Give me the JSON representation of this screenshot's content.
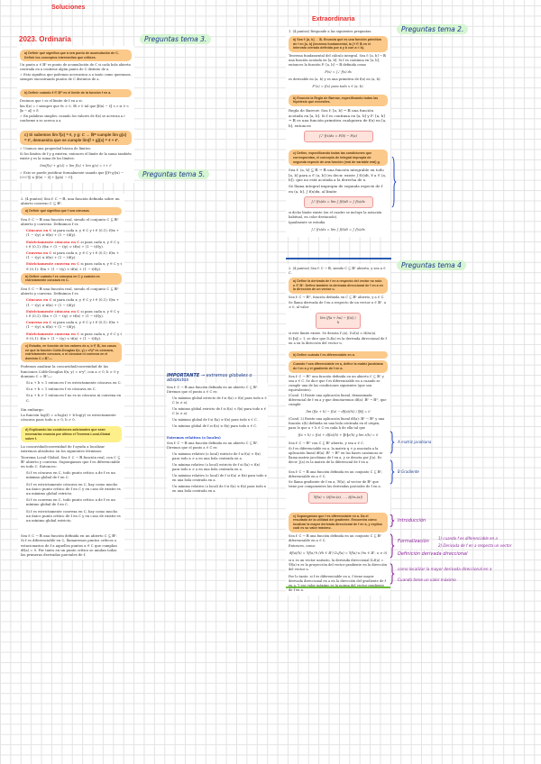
{
  "titles": {
    "soluciones": "Soluciones",
    "ordinaria": "2023. Ordinaria",
    "extraordinaria": "Extraordinaria"
  },
  "tags": [
    "Preguntas tema 3.",
    "Preguntas tema 2.",
    "Preguntas tema 5.",
    "Preguntas tema 4"
  ],
  "colors": {
    "title": "#e8302f",
    "question": "#fbc98a",
    "highlight": "#fcf282",
    "tag": "#d6f5d2",
    "annotation": "#8a1f9a",
    "divider_blue": "#2a5cb0",
    "divider_green": "#6cbf3a"
  },
  "ord": {
    "qa": "a) Definir qué significa que a sea punto de acumulación de C. Definir los conceptos intermedios que utilices.",
    "qa_body": [
      "Un punto a ∈ ℝⁿ es punto de acumulación de C si cada bola abierta centrada en a contiene algún punto de C distinto de a.",
      "✓ Esto significa que podemos acercarnos a a tanto como queramos, siempre encontrando puntos de C distintos de a."
    ],
    "qb": "b) Definir cuándo ℓ ∈ ℝᵐ es el límite de la función f en a.",
    "qb_body": [
      "Decimos que ℓ es el límite de f en a si:",
      "lim f(x) = ℓ   siempre que  ∀ε > 0, ∃δ > 0 tal que ‖f(x) − ℓ‖ < ε si 0 < ‖x − a‖ < δ",
      "✓ En palabras simples: cuando los valores de f(x) se acercan a ℓ conforme x se acerca a a."
    ],
    "qc": "c) Si sabemos lím f(x) = ℓ, y g: C → ℝᵐ cumple lím g(x) = ℓ', demuestra que se cumple lím(f + g)(x) = ℓ + ℓ'.",
    "qc_body": [
      "✓ Usamos una propiedad básica de límites:",
      "Si los límites de f y g existen, entonces el límite de la suma también existe y es la suma de los límites:",
      "lim(f(x) + g(x)) = lim f(x) + lim g(x) = ℓ + ℓ'",
      "✓ Esto se puede justificar formalmente usando que ‖(f+g)(x) − (ℓ+ℓ')‖ ≤ ‖f(x) − ℓ‖ + ‖g(x) − ℓ'‖."
    ]
  },
  "t5": {
    "intro": "2. (4 puntos) Sea f: C → ℝ, una función definida sobre un abierto convexo C ⊆ ℝⁿ.",
    "qa": "a) Definir qué significa que f sea cóncava.",
    "qa_body": "Sea f: C → ℝ una función real, siendo el conjunto C ⊆ ℝⁿ abierto y convexo. Definimos f es",
    "items": [
      {
        "k": "Cóncava en C",
        "v": "si para cada x, y ∈ C y t ∈ (0,1): f(tx + (1 − t)y) ≥ tf(x) + (1 − t)f(y)."
      },
      {
        "k": "Estrictamente cóncava en C",
        "v": "si para cada x, y ∈ C y t ∈ (0,1): f(tx + (1 − t)y) > tf(x) + (1 − t)f(y)."
      },
      {
        "k": "Convexa en C",
        "v": "si para cada x, y ∈ C y t ∈ (0,1): f(tx + (1 − t)y) ≤ tf(x) + (1 − t)f(y)."
      },
      {
        "k": "Estrictamente convexa en C",
        "v": "si para cada x, y ∈ C y t ∈ (0,1): f(tx + (1 − t)y) < tf(x) + (1 − t)f(y)."
      }
    ],
    "qb": "b) Definir cuándo f es cóncava en C y cuándo es estrictamente cóncava en C.",
    "qb_body": "Sea f: C → ℝ una función real, siendo el conjunto C ⊆ ℝⁿ abierto y convexo. Definimos f es",
    "qc": "c) Estudia, en función de los valores de a, b ∈ ℝ, los casos en que la función Cobb-Douglas f(x, y) = xᵃyᵇ es cóncava, estrictamente cóncava, o ni cóncava ni convexa en el dominio C = ℝ²₊₊.",
    "qc_body": "Podemos analizar la concavidad/convexidad de las funciones Cobb-Douglas f(x, y) = xᵃyᵇ, con a > 0, b > 0 y dominio C = ℝ²₊₊:",
    "cases": [
      "Si a + b < 1 entonces f es estrictamente cóncava en C.",
      "Si a + b = 1 entonces f es cóncava en C.",
      "Si a + b > 1 entonces f no es ni cóncava ni convexa en C."
    ],
    "sin_embargo": "Sin embargo:",
    "log": "La función log(f) = a·log(x) + b·log(y) es estrictamente cóncava para todo a > 0, b > 0.",
    "qd": "d) Explicando las condiciones adicionales que sean necesarias enuncia por último el Teorema Local-Global sobre f.",
    "qd_body": "La concavidad/convexidad de f ayuda a localizar extremos absolutos en los siguientes términos:",
    "teorema": "Teorema Local-Global. Sea f: C → ℝ función real, con C ⊆ ℝⁿ abierto y convexo. Supongamos que f es diferenciable en todo C. Entonces:",
    "tl": [
      "Si f es cóncava en C, todo punto crítico a de f es un máximo global de f en C.",
      "Si f es estrictamente cóncava en C, hay como mucho un único punto crítico de f en C y en caso de existir es un máximo global estricto.",
      "Si f es convexa en C, todo punto crítico a de f es un mínimo global de f en C.",
      "Si f es estrictamente convexa en C, hay como mucho un único punto crítico de f en C y en caso de existir es un mínimo global estricto."
    ],
    "final": "Sea f: C → ℝ una función definida en un abierto C ⊆ ℝⁿ. Si f es diferenciable en C, llamaremos puntos críticos o estacionarios de f a aquellos puntos a ∈ C que cumplan df(a) = 0. Por tanto en un punto crítico se anulan todas las primeras derivadas parciales de f."
  },
  "imp": {
    "head": "IMPORTANTE",
    "head2": "→ extremos globales o absolutos",
    "body": "Sea f: C → ℝ una función definida en un abierto C ⊆ ℝⁿ. Diremos que el punto a ∈ C es:",
    "items": [
      "Un máximo global estricto de f si f(a) > f(x) para todo x ∈ C (x ≠ a).",
      "Un mínimo global estricto de f si f(a) < f(x) para todo x ∈ C (x ≠ a).",
      "Un máximo global de f si f(a) ≥ f(x) para todo x ∈ C.",
      "Un mínimo global de f si f(a) ≤ f(x) para todo x ∈ C."
    ],
    "rel_head": "Extremos relativos (o locales)",
    "rel_body": "Sea f: C → ℝ una función definida en un abierto C ⊆ ℝⁿ. Diremos que el punto a ∈ C es:",
    "rel": [
      "Un máximo relativo (o local) estricto de f si f(a) > f(x) para todo x ≠ a en una bola centrada en a.",
      "Un mínimo relativo (o local) estricto de f si f(a) < f(x) para todo x ≠ a en una bola centrada en a.",
      "Un máximo relativo (o local) de f si f(a) ≥ f(x) para todo x en una bola centrada en a.",
      "Un mínimo relativo (o local) de f si f(a) ≤ f(x) para todo x en una bola centrada en a."
    ]
  },
  "ext": {
    "intro": "1. (4 puntos) Responde a las siguientes preguntas:",
    "qa": "a) Sea f: [a, b] → ℝ. Enuncia qué es una función primitiva de f en [a, b] (teorema fundamental, la ∫ f ∈ ℝ en el intervalo cerrado definido por a y b con a < b).",
    "tf": "Teorema fundamental del cálculo integral. Sea f: [a, b] → ℝ una función acotada en [a, b]. Si f es continua en [a, b], entonces la función F: [a, b] → ℝ definida como",
    "tf_f": "F(x) = ∫ₐˣ f(s) ds",
    "tf2": "es derivable en (a, b) y es una primitiva de f(x) en (a, b):",
    "tf_f2": "F'(x) = f(x)   para todo x ∈ (a, b).",
    "qb": "b) Enuncia la Regla de Barrow, especificando todas las hipótesis que necesites.",
    "barrow": "Regla de Barrow. Sea f: [a, b] → ℝ una función acotada en [a, b]. Si f es continua en [a, b] y F: [a, b] → ℝ es una función primitiva cualquiera de f(x) en [a, b], entonces",
    "barrow_f": "∫ₐᵇ f(x)dx = F(b) − F(a)",
    "qc": "c) Define, especificando todas las condiciones que correspondan, el concepto de integral impropia de segunda especie de una función (real de variable real) g.",
    "c1": "Sea f: (a, b] ⊆ ℝ → ℝ una función integrable en todo [a, b] para a ∈ (a, b] (es decir, existe ∫ f(t)dt, ∀ a ∈ (a, b]), que no está acotada a la derecha de a.",
    "c2": "Se llama integral impropia de segunda especie de f en (a, b], ∫ f(x)dx, al límite",
    "c_f": "∫ₐᵇ f(x)dx = lím ∫ f(t)dt = ∫ f(x)dx",
    "c3": "si dicho límite existe (en el cuadro se incluye la notación habitual, en color destacado).",
    "c4": "Igualmente se estudia",
    "c_f2": "∫ₐᵇ f(x)dx = lím ∫ f(t)dt = ∫ f(x)dx"
  },
  "t4": {
    "intro": "2. (4 puntos) Sea f: C → ℝ, siendo C ⊆ ℝⁿ abierto, y sea a ∈ C.",
    "qa": "a) Define la derivada de f en a respecto del vector no nulo u ∈ ℝⁿ. Define también la derivada direccional de f en a en la dirección de un vector u.",
    "a1": "Sea f: C → ℝᵐ, función definida en C ⊆ ℝⁿ abierto, y a ∈ C.",
    "a2": "Se llama derivada de f en a respecto de un vector u ∈ ℝⁿ, u ≠ 0, al valor",
    "a_f": "lím (f(a + hu) − f(a)) / h",
    "a3": "si este límite existe. Se denota f'ᵤ(a), Dᵤf(a) o ∂f/∂u(a).",
    "a4": "Si ‖u‖ = 1, se dice que Dᵤf(a) es la derivada direccional de f en a en la dirección del vector u.",
    "qb": "b) Define cuándo f es diferenciable en a.",
    "qb2": "Cuando f sea diferenciable en a, define la matriz jacobiana de f en a y el gradiente de f en a.",
    "b1": "Sea f: C → ℝᵐ una función definida en un abierto C ⊆ ℝⁿ y sea a ∈ C. Se dice que f es diferenciable en a cuando se cumple una de las condiciones siguientes (que son equivalentes).",
    "b2": "(Cond. 1) Existe una aplicación lineal, denominada diferencial de f en a y que denotaremos df(a): ℝⁿ → ℝᵐ, que cumple:",
    "b_f": "lím (f(a + h) − f(a) − df(a)(h)) / ‖h‖ = 0",
    "b3": "(Cond. 2) Existe una aplicación lineal df(a): ℝⁿ → ℝᵐ y una función ε(h) definida en una bola centrada en el origen, para lo que a + h ∈ C en cada h de ella tal que",
    "b_f2": "f(a + h) = f(a) + df(a)(h) + ‖h‖ε(h)   y   lím ε(h) = 0",
    "j1": "Sea f: C → ℝᵐ con C ⊆ ℝⁿ abierto, y sea a ∈ C.",
    "j2": "Si f es diferenciable en a, la matriz q × p asociada a la aplicación lineal df(a): ℝⁿ → ℝᵐ en las bases canónicas se llama matriz jacobiana de f en a, y se denota por J(a). Es decir: J(a) es la matriz de la diferencial de f en a.",
    "g1": "Sea f: C → ℝ una función definida en un conjunto C ⊆ ℝⁿ, diferenciable en a ∈ C.",
    "g2": "Se llama gradiente de f en a, ∇f(a), al vector de ℝⁿ que tiene por componentes las derivadas parciales de f en a.",
    "g_f": "∇f(a) = (∂f/∂x₁(a), …, ∂f/∂xₙ(a))",
    "qc": "c) Supongamos que f es diferenciable en a. Da el resultado de la utilidad del gradiente. Encuentra cómo localizar la mayor derivada direccional de f en a, y explica cuál es su valor máximo.",
    "c1": "Sea f: C → ℝ una función definida en un conjunto C ⊆ ℝⁿ diferenciable en a ∈ C.",
    "c2": "Entonces, como:",
    "c_f": "df(a)(h) = ∇f(a)·h  (∀h ∈ ℝⁿ)     Dᵤf(a) = ∇f(a)·u  (∀u ∈ ℝⁿ, u ≠ 0)",
    "c3": "si u es un vector unitario, la derivada direccional Dᵤf(a) = ∇f(a)·u es la proyección del vector gradiente en la dirección del vector u.",
    "c4": "Por lo tanto: si f es diferenciable en a, f tiene mayor derivada direccional en a en la dirección del gradiente de f en a. Y ese valor máximo es la norma del vector gradiente de f en a."
  },
  "notes": {
    "jacobiana": "A matriz jacobiana",
    "gradiente": "B Gradiente",
    "intro": "Introducción",
    "formal": "Formalización",
    "defdir": "Definición derivada direccional",
    "f1": "1) cuando f es diferenciable en a",
    "f2": "2) Derivada de f en a respecto un vector",
    "mayor": "como localizar la mayor derivada direccional en a",
    "maximo": "Cuando tiene un valor máximo"
  }
}
